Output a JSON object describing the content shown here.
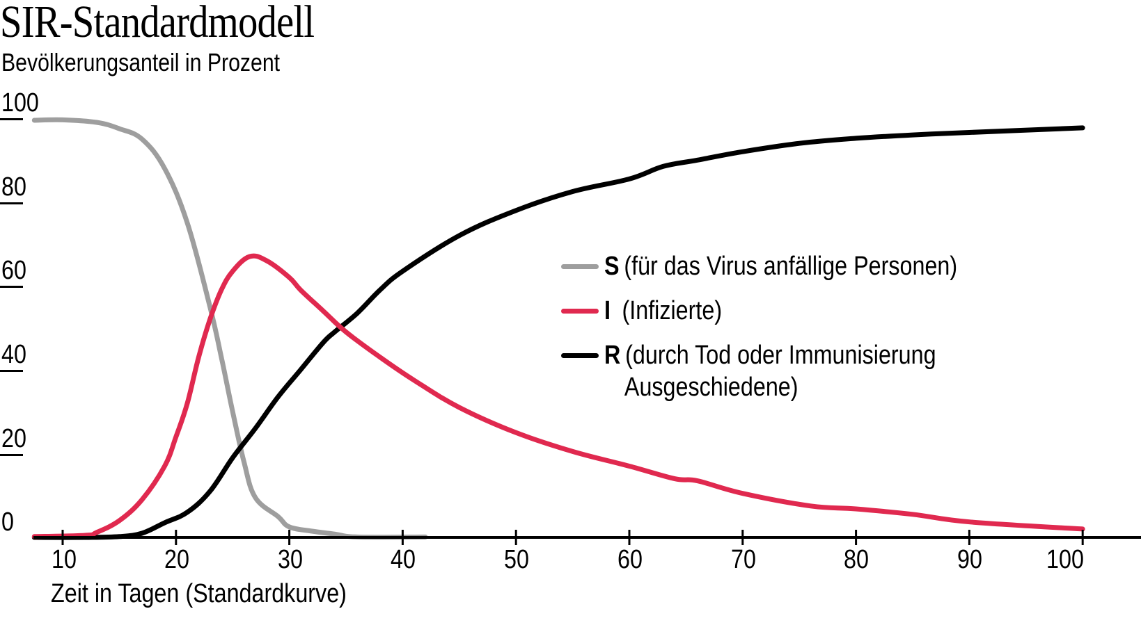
{
  "header": {
    "title": "SIR-Standardmodell",
    "subtitle": "Bevölkerungsanteil in Prozent"
  },
  "axes": {
    "y_ticks": [
      "100",
      "80",
      "60",
      "40",
      "20",
      "0"
    ],
    "x_ticks": [
      "10",
      "20",
      "30",
      "40",
      "50",
      "60",
      "70",
      "80",
      "90",
      "100"
    ],
    "x_title": "Zeit in Tagen (Standardkurve)"
  },
  "legend": {
    "items": [
      {
        "key": "S",
        "text": "(für das Virus anfällige Personen)",
        "text2": "",
        "color": "#9e9e9e"
      },
      {
        "key": "I",
        "text": "(Infizierte)",
        "text2": "",
        "color": "#e0294f"
      },
      {
        "key": "R",
        "text": "(durch Tod oder Immunisierung",
        "text2": "Ausgeschiedene)",
        "color": "#000000"
      }
    ]
  },
  "colors": {
    "S": "#9e9e9e",
    "I": "#e0294f",
    "R": "#000000",
    "axis": "#000000"
  },
  "chart_data": {
    "type": "line",
    "title": "SIR-Standardmodell",
    "subtitle": "Bevölkerungsanteil in Prozent",
    "xlabel": "Zeit in Tagen (Standardkurve)",
    "ylabel": "Bevölkerungsanteil in Prozent",
    "xlim": [
      7.5,
      100
    ],
    "ylim": [
      0,
      100
    ],
    "x_ticks": [
      10,
      20,
      30,
      40,
      50,
      60,
      70,
      80,
      90,
      100
    ],
    "y_ticks": [
      0,
      20,
      40,
      60,
      80,
      100
    ],
    "grid": false,
    "legend_position": "center-right",
    "series": [
      {
        "name": "S (für das Virus anfällige Personen)",
        "color": "#9e9e9e",
        "x": [
          7.5,
          10,
          13,
          15,
          17,
          19,
          21,
          23,
          24,
          25,
          26,
          27,
          29,
          30,
          32,
          34,
          36,
          42
        ],
        "y": [
          99.5,
          99.6,
          99,
          97.5,
          95,
          88,
          75,
          55,
          43,
          30,
          18,
          9.5,
          5,
          2.5,
          1.5,
          0.8,
          0.1,
          0.1
        ]
      },
      {
        "name": "I (Infizierte)",
        "color": "#e0294f",
        "x": [
          7.5,
          12,
          13,
          15,
          17,
          19,
          20,
          21,
          22,
          23,
          24,
          25,
          26.5,
          28,
          30,
          31,
          33,
          35,
          38,
          41,
          45,
          50,
          55,
          60,
          64,
          66,
          70,
          76,
          80,
          85,
          90,
          100
        ],
        "y": [
          0.2,
          0.5,
          1.2,
          4,
          9,
          17,
          24,
          32,
          43,
          52,
          59,
          63.5,
          67,
          66,
          62,
          59,
          54,
          49,
          43,
          37.5,
          31,
          25,
          20.5,
          17,
          14,
          13.5,
          10.5,
          7.5,
          6.8,
          5.5,
          3.7,
          2
        ]
      },
      {
        "name": "R (durch Tod oder Immunisierung Ausgeschiedene)",
        "color": "#000000",
        "x": [
          7.5,
          12,
          15,
          17,
          19,
          21,
          23,
          25,
          27,
          29,
          31,
          33,
          34,
          36,
          38,
          40,
          45,
          50,
          55,
          60,
          63,
          66,
          70,
          75,
          80,
          85,
          90,
          100
        ],
        "y": [
          0,
          0,
          0.2,
          1,
          3.5,
          6,
          11,
          19,
          26,
          33.5,
          40,
          46.5,
          49,
          53.5,
          59,
          63.5,
          72,
          78,
          82.5,
          85.5,
          88.5,
          90,
          92,
          94,
          95.2,
          96,
          96.6,
          97.7
        ]
      }
    ]
  }
}
